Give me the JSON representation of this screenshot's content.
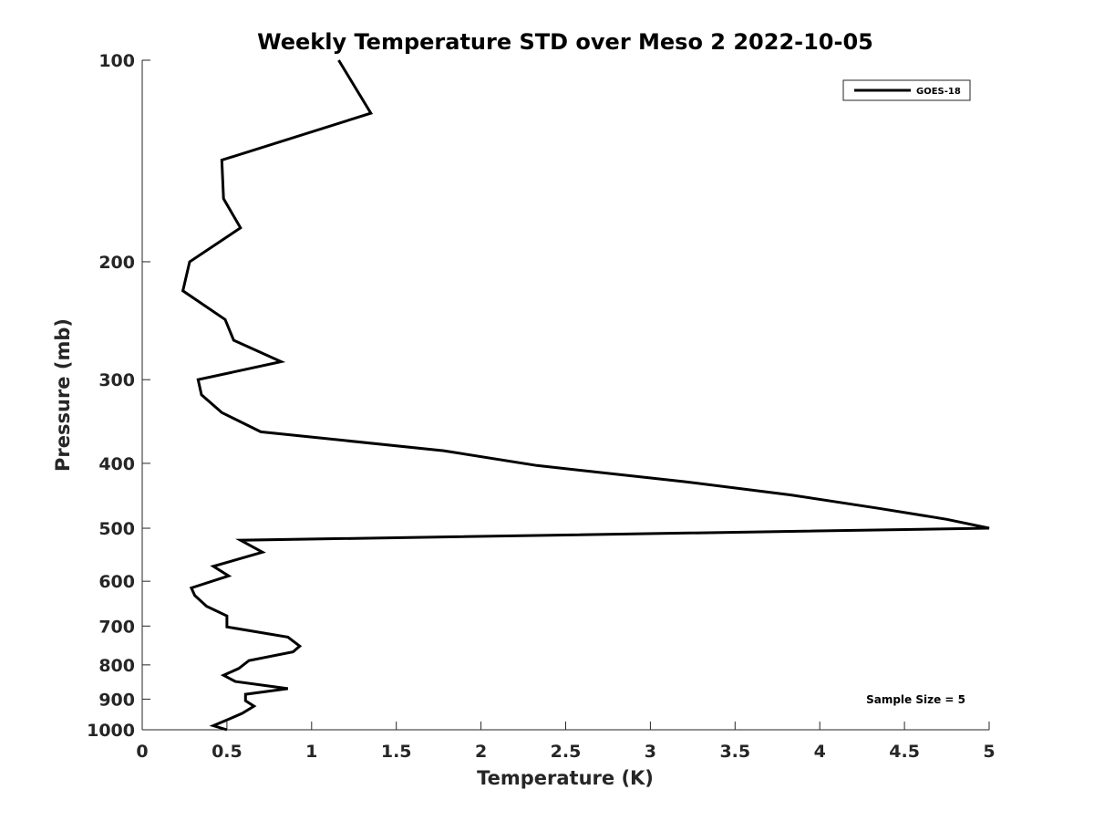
{
  "chart_data": {
    "type": "line",
    "title": "Weekly Temperature STD over Meso 2 2022-10-05",
    "xlabel": "Temperature (K)",
    "ylabel": "Pressure (mb)",
    "xlim": [
      0,
      5
    ],
    "ylim": [
      100,
      1000
    ],
    "y_scale": "log",
    "y_reversed": true,
    "x_ticks": [
      "0",
      "0.5",
      "1",
      "1.5",
      "2",
      "2.5",
      "3",
      "3.5",
      "4",
      "4.5",
      "5"
    ],
    "x_tick_values": [
      0,
      0.5,
      1,
      1.5,
      2,
      2.5,
      3,
      3.5,
      4,
      4.5,
      5
    ],
    "y_ticks": [
      "100",
      "200",
      "300",
      "400",
      "500",
      "600",
      "700",
      "800",
      "900",
      "1000"
    ],
    "y_tick_values": [
      100,
      200,
      300,
      400,
      500,
      600,
      700,
      800,
      900,
      1000
    ],
    "grid": false,
    "legend_position": "top-right",
    "annotation": "Sample Size = 5",
    "series": [
      {
        "name": "GOES-18",
        "color": "#000000",
        "points": [
          [
            1.16,
            100
          ],
          [
            1.35,
            120
          ],
          [
            0.47,
            141
          ],
          [
            0.48,
            161
          ],
          [
            0.58,
            178
          ],
          [
            0.28,
            200
          ],
          [
            0.24,
            221
          ],
          [
            0.49,
            244
          ],
          [
            0.54,
            262
          ],
          [
            0.82,
            282
          ],
          [
            0.33,
            300
          ],
          [
            0.35,
            316
          ],
          [
            0.47,
            336
          ],
          [
            0.7,
            359
          ],
          [
            1.78,
            383
          ],
          [
            2.33,
            403
          ],
          [
            3.2,
            426
          ],
          [
            3.83,
            446
          ],
          [
            4.35,
            467
          ],
          [
            4.75,
            485
          ],
          [
            5.0,
            500
          ],
          [
            0.58,
            521
          ],
          [
            0.71,
            543
          ],
          [
            0.42,
            570
          ],
          [
            0.51,
            589
          ],
          [
            0.29,
            614
          ],
          [
            0.31,
            630
          ],
          [
            0.38,
            654
          ],
          [
            0.5,
            676
          ],
          [
            0.5,
            702
          ],
          [
            0.86,
            727
          ],
          [
            0.93,
            750
          ],
          [
            0.89,
            765
          ],
          [
            0.63,
            788
          ],
          [
            0.57,
            810
          ],
          [
            0.48,
            829
          ],
          [
            0.55,
            847
          ],
          [
            0.86,
            868
          ],
          [
            0.61,
            885
          ],
          [
            0.61,
            905
          ],
          [
            0.66,
            922
          ],
          [
            0.59,
            945
          ],
          [
            0.5,
            967
          ],
          [
            0.42,
            986
          ],
          [
            0.5,
            1000
          ]
        ]
      }
    ]
  }
}
